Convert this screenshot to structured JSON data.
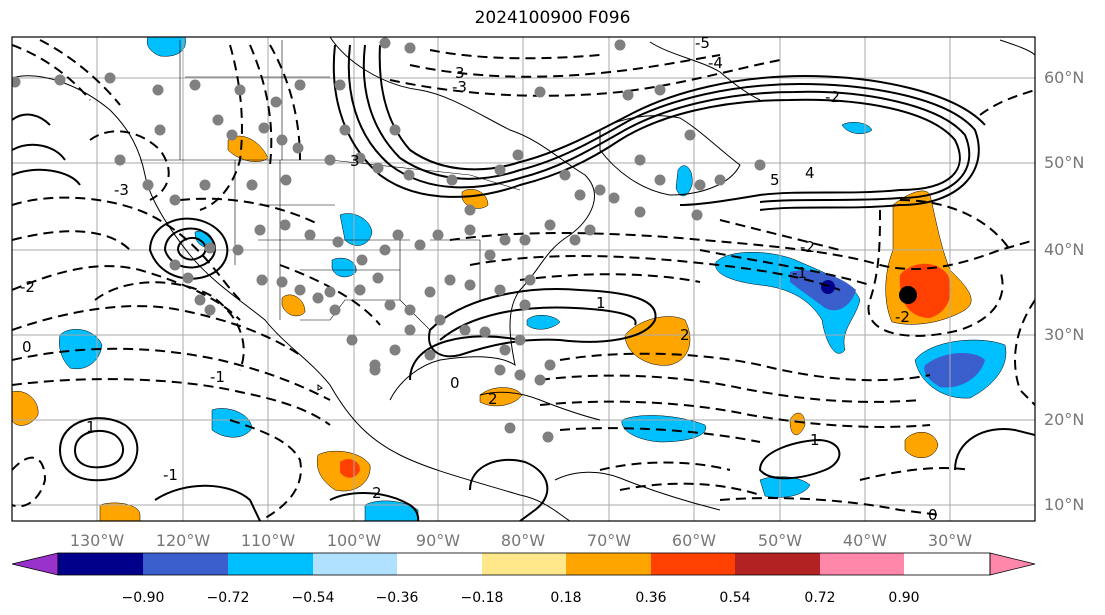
{
  "title": "2024100900 F096",
  "latitude_labels": [
    "10°N",
    "20°N",
    "30°N",
    "40°N",
    "50°N",
    "60°N"
  ],
  "longitude_labels": [
    "130°W",
    "120°W",
    "110°W",
    "100°W",
    "90°W",
    "80°W",
    "70°W",
    "60°W",
    "50°W",
    "40°W",
    "30°W"
  ],
  "colorbar": {
    "ticks": [
      "−0.90",
      "−0.72",
      "−0.54",
      "−0.36",
      "−0.18",
      "0.18",
      "0.36",
      "0.54",
      "0.72",
      "0.90"
    ],
    "colors": [
      "#9932cc",
      "#00008b",
      "#3a5fcd",
      "#00bfff",
      "#b0e2ff",
      "#ffffff",
      "#ffe88a",
      "#ffa500",
      "#ff4000",
      "#b22222",
      "#ff88aa"
    ]
  },
  "colors": {
    "frame": "#000000",
    "grid": "#aaaaaa",
    "station_dot": "#808080",
    "positive": "#ffa500",
    "positive_strong": "#ff4000",
    "negative": "#00bfff",
    "negative_strong": "#3a5fcd"
  },
  "contour_labels": [
    "-5",
    "-4",
    "-3",
    "-2",
    "-1",
    "0",
    "1",
    "2",
    "3",
    "4",
    "5"
  ]
}
